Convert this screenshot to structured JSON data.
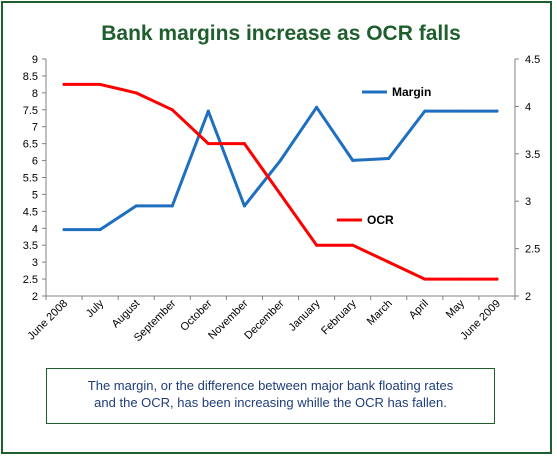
{
  "chart_data": {
    "type": "line",
    "title": "Bank margins increase as OCR falls",
    "categories": [
      "June 2008",
      "July",
      "August",
      "September",
      "October",
      "November",
      "December",
      "January",
      "February",
      "March",
      "April",
      "May",
      "June 2009"
    ],
    "y_left": {
      "ylim": [
        2,
        9
      ],
      "ticks": [
        "2",
        "2.5",
        "3",
        "3.5",
        "4",
        "4.5",
        "5",
        "5.5",
        "6",
        "6.5",
        "7",
        "7.5",
        "8",
        "8.5",
        "9"
      ]
    },
    "y_right": {
      "ylim": [
        2,
        4.5
      ],
      "ticks": [
        "2",
        "2.5",
        "3",
        "3.5",
        "4",
        "4.5"
      ]
    },
    "series": [
      {
        "name": "Margin",
        "axis": "right",
        "color": "#1f6fc0",
        "values": [
          2.7,
          2.7,
          2.95,
          2.95,
          3.95,
          2.95,
          3.43,
          3.99,
          3.43,
          3.45,
          3.95,
          3.95,
          3.95
        ]
      },
      {
        "name": "OCR",
        "axis": "left",
        "color": "#ff0000",
        "values": [
          8.25,
          8.25,
          8.0,
          7.5,
          6.5,
          6.5,
          5.0,
          3.5,
          3.5,
          3.0,
          2.5,
          2.5,
          2.5
        ]
      }
    ],
    "legend": "inline"
  },
  "caption": {
    "line1": "The margin, or the difference between major bank floating rates",
    "line2": "and the OCR, has been increasing whille the OCR has fallen."
  },
  "colors": {
    "title": "#1f5f2e",
    "frame": "#1f5f2e",
    "caption_text": "#1f3d7a"
  }
}
